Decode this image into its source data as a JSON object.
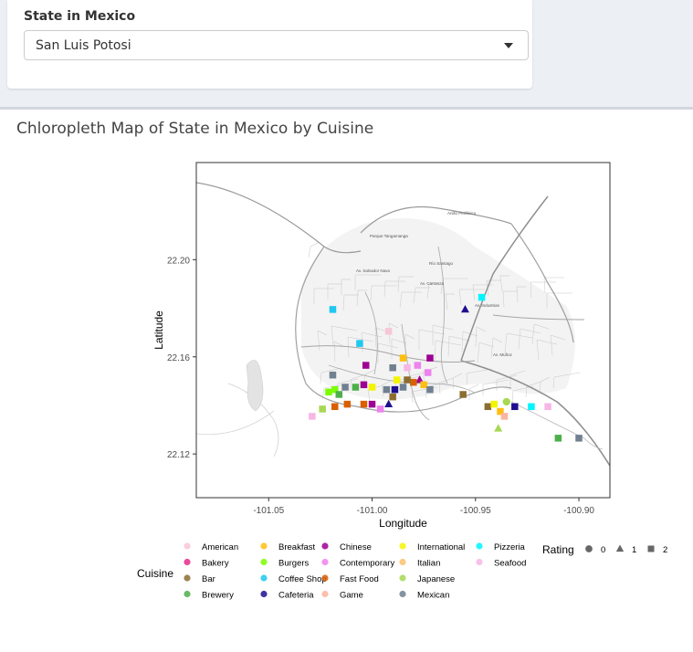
{
  "selector": {
    "label": "State in Mexico",
    "selected": "San Luis Potosi"
  },
  "box_title": "Chloropleth Map of State in Mexico by Cuisine",
  "chart_data": {
    "type": "scatter",
    "title": "",
    "xlabel": "Longitude",
    "ylabel": "Latitude",
    "xlim": [
      -101.085,
      -100.885
    ],
    "ylim": [
      22.102,
      22.24
    ],
    "xticks": [
      -101.05,
      -101.0,
      -100.95,
      -100.9
    ],
    "xtick_labels": [
      "-101.05",
      "-101.00",
      "-100.95",
      "-100.90"
    ],
    "yticks": [
      22.12,
      22.16,
      22.2
    ],
    "ytick_labels": [
      "22.12",
      "22.16",
      "22.20"
    ],
    "basemap": "street-map",
    "map_labels": [
      "Anillo Periférico",
      "Parque Tangamanga",
      "Río Santiago",
      "Av. Salvador Nava",
      "Av. Carranza",
      "Av. Industrias",
      "Av. Muñoz"
    ],
    "legend_cuisine": {
      "title": "Cuisine",
      "entries": [
        {
          "label": "American",
          "color": "#f7c6d9"
        },
        {
          "label": "Bakery",
          "color": "#e7298a"
        },
        {
          "label": "Bar",
          "color": "#8c6d31"
        },
        {
          "label": "Brewery",
          "color": "#4daf4a"
        },
        {
          "label": "Breakfast",
          "color": "#fdbf11"
        },
        {
          "label": "Burgers",
          "color": "#7cfc00"
        },
        {
          "label": "Coffee Shop",
          "color": "#1ec8f0"
        },
        {
          "label": "Cafeteria",
          "color": "#1f0f8f"
        },
        {
          "label": "Chinese",
          "color": "#9e0093"
        },
        {
          "label": "Contemporary",
          "color": "#ee82ee"
        },
        {
          "label": "Fast Food",
          "color": "#d95f02"
        },
        {
          "label": "Game",
          "color": "#fbb4a0"
        },
        {
          "label": "International",
          "color": "#f4f400"
        },
        {
          "label": "Italian",
          "color": "#fdbf6f"
        },
        {
          "label": "Japanese",
          "color": "#a6d854"
        },
        {
          "label": "Mexican",
          "color": "#708090"
        },
        {
          "label": "Pizzeria",
          "color": "#00f5ff"
        },
        {
          "label": "Seafood",
          "color": "#f7b6e6"
        }
      ]
    },
    "legend_rating": {
      "title": "Rating",
      "entries": [
        {
          "label": "0",
          "shape": "circle"
        },
        {
          "label": "1",
          "shape": "triangle"
        },
        {
          "label": "2",
          "shape": "square"
        }
      ]
    },
    "points": [
      {
        "x": -101.019,
        "y": 22.1795,
        "cuisine": "Coffee Shop",
        "rating": 2
      },
      {
        "x": -100.992,
        "y": 22.1705,
        "cuisine": "American",
        "rating": 2
      },
      {
        "x": -101.006,
        "y": 22.1655,
        "cuisine": "Coffee Shop",
        "rating": 2
      },
      {
        "x": -100.947,
        "y": 22.1845,
        "cuisine": "Pizzeria",
        "rating": 2
      },
      {
        "x": -100.955,
        "y": 22.1795,
        "cuisine": "Cafeteria",
        "rating": 1
      },
      {
        "x": -101.003,
        "y": 22.1565,
        "cuisine": "Chinese",
        "rating": 2
      },
      {
        "x": -100.985,
        "y": 22.1595,
        "cuisine": "Breakfast",
        "rating": 2
      },
      {
        "x": -100.972,
        "y": 22.1595,
        "cuisine": "Chinese",
        "rating": 2
      },
      {
        "x": -100.978,
        "y": 22.1565,
        "cuisine": "Contemporary",
        "rating": 2
      },
      {
        "x": -100.983,
        "y": 22.1555,
        "cuisine": "Seafood",
        "rating": 2
      },
      {
        "x": -101.019,
        "y": 22.1525,
        "cuisine": "Mexican",
        "rating": 2
      },
      {
        "x": -100.99,
        "y": 22.1555,
        "cuisine": "Mexican",
        "rating": 2
      },
      {
        "x": -100.973,
        "y": 22.1535,
        "cuisine": "Contemporary",
        "rating": 2
      },
      {
        "x": -100.977,
        "y": 22.1505,
        "cuisine": "Chinese",
        "rating": 1
      },
      {
        "x": -100.98,
        "y": 22.1495,
        "cuisine": "Fast Food",
        "rating": 2
      },
      {
        "x": -100.983,
        "y": 22.1505,
        "cuisine": "Bar",
        "rating": 2
      },
      {
        "x": -100.988,
        "y": 22.1505,
        "cuisine": "International",
        "rating": 2
      },
      {
        "x": -100.975,
        "y": 22.1485,
        "cuisine": "Breakfast",
        "rating": 2
      },
      {
        "x": -101.018,
        "y": 22.1465,
        "cuisine": "Burgers",
        "rating": 2
      },
      {
        "x": -101.013,
        "y": 22.1475,
        "cuisine": "Mexican",
        "rating": 2
      },
      {
        "x": -101.008,
        "y": 22.1475,
        "cuisine": "Brewery",
        "rating": 2
      },
      {
        "x": -101.004,
        "y": 22.1485,
        "cuisine": "Chinese",
        "rating": 2
      },
      {
        "x": -101.0,
        "y": 22.1475,
        "cuisine": "International",
        "rating": 2
      },
      {
        "x": -100.993,
        "y": 22.1465,
        "cuisine": "Mexican",
        "rating": 2
      },
      {
        "x": -100.989,
        "y": 22.1465,
        "cuisine": "Cafeteria",
        "rating": 2
      },
      {
        "x": -100.985,
        "y": 22.1475,
        "cuisine": "Mexican",
        "rating": 2
      },
      {
        "x": -100.972,
        "y": 22.1465,
        "cuisine": "Mexican",
        "rating": 2
      },
      {
        "x": -101.016,
        "y": 22.1445,
        "cuisine": "Brewery",
        "rating": 2
      },
      {
        "x": -101.021,
        "y": 22.1455,
        "cuisine": "Burgers",
        "rating": 2
      },
      {
        "x": -100.99,
        "y": 22.1435,
        "cuisine": "Bar",
        "rating": 2
      },
      {
        "x": -101.012,
        "y": 22.1405,
        "cuisine": "Fast Food",
        "rating": 2
      },
      {
        "x": -101.024,
        "y": 22.1385,
        "cuisine": "Japanese",
        "rating": 2
      },
      {
        "x": -101.018,
        "y": 22.1395,
        "cuisine": "Fast Food",
        "rating": 2
      },
      {
        "x": -101.004,
        "y": 22.1405,
        "cuisine": "Fast Food",
        "rating": 2
      },
      {
        "x": -101.0,
        "y": 22.1405,
        "cuisine": "Chinese",
        "rating": 2
      },
      {
        "x": -100.996,
        "y": 22.1385,
        "cuisine": "Contemporary",
        "rating": 2
      },
      {
        "x": -100.992,
        "y": 22.1405,
        "cuisine": "Cafeteria",
        "rating": 1
      },
      {
        "x": -101.029,
        "y": 22.1355,
        "cuisine": "Seafood",
        "rating": 2
      },
      {
        "x": -100.956,
        "y": 22.1445,
        "cuisine": "Bar",
        "rating": 2
      },
      {
        "x": -100.944,
        "y": 22.1395,
        "cuisine": "Bar",
        "rating": 2
      },
      {
        "x": -100.941,
        "y": 22.1405,
        "cuisine": "International",
        "rating": 2
      },
      {
        "x": -100.938,
        "y": 22.1375,
        "cuisine": "Breakfast",
        "rating": 2
      },
      {
        "x": -100.935,
        "y": 22.1415,
        "cuisine": "Japanese",
        "rating": 0
      },
      {
        "x": -100.936,
        "y": 22.1355,
        "cuisine": "Game",
        "rating": 2
      },
      {
        "x": -100.931,
        "y": 22.1395,
        "cuisine": "Cafeteria",
        "rating": 2
      },
      {
        "x": -100.923,
        "y": 22.1395,
        "cuisine": "Pizzeria",
        "rating": 2
      },
      {
        "x": -100.915,
        "y": 22.1395,
        "cuisine": "Seafood",
        "rating": 2
      },
      {
        "x": -100.939,
        "y": 22.1305,
        "cuisine": "Japanese",
        "rating": 1
      },
      {
        "x": -100.91,
        "y": 22.1265,
        "cuisine": "Brewery",
        "rating": 2
      },
      {
        "x": -100.9,
        "y": 22.1265,
        "cuisine": "Mexican",
        "rating": 2
      }
    ]
  }
}
